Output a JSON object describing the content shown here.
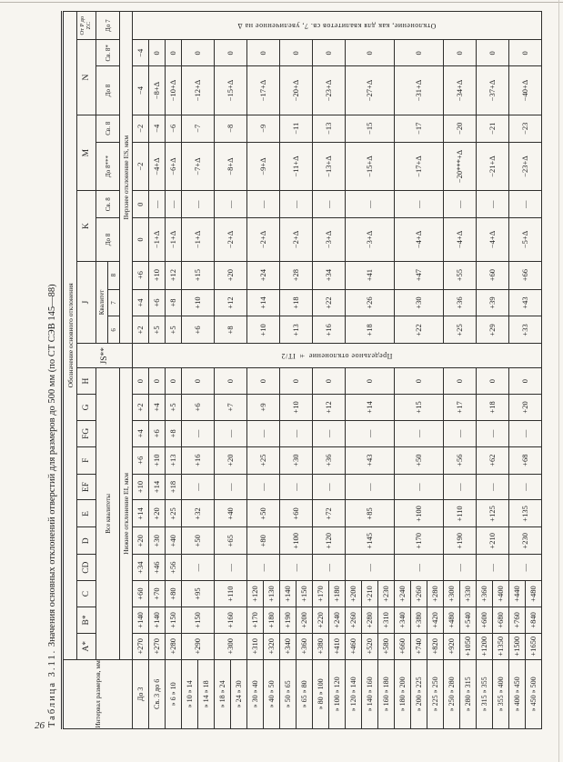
{
  "page": {
    "number": "26"
  },
  "table": {
    "title_label": "Таблица 3.11.",
    "title_text": "Значения основных отклонений отверстий для размеров до 500 мм (по СТ СЭВ 145—88)",
    "header": {
      "interval": "Интервал размеров, мм",
      "designation": "Обозначение основного отклонения",
      "letters": {
        "A": "A*",
        "B": "B*",
        "C": "C",
        "CD": "CD",
        "D": "D",
        "E": "E",
        "EF": "EF",
        "F": "F",
        "FG": "FG",
        "G": "G",
        "H": "H",
        "JS": "JS**",
        "J": "J",
        "K": "K",
        "M": "M",
        "N": "N",
        "PZC": "От P до ZC"
      },
      "all_grades": "Все квалитеты",
      "grade": "Квалитет",
      "grades": [
        "6",
        "7",
        "8"
      ],
      "k_sub": [
        "До 8",
        "Св. 8"
      ],
      "m_sub": [
        "До 8***",
        "Св. 8"
      ],
      "n_sub": [
        "До 8",
        "Св. 8*"
      ],
      "pzc_sub": "До 7",
      "lower": "Нижнее отклонение EI, мкм",
      "upper": "Верхнее отклонение ES, мкм"
    },
    "js_note": "Предельное отклонение ± IT/2",
    "pzc_note": "Отклонение, как для квалитетов св. 7, увеличенное на Δ",
    "intervals": [
      "До 3",
      "Св. 3 до 6",
      "» 6 » 10",
      "» 10 » 14",
      "» 14 » 18",
      "» 18 » 24",
      "» 24 » 30",
      "» 30 » 40",
      "» 40 » 50",
      "» 50 » 65",
      "» 65 » 80",
      "» 80 » 100",
      "» 100 » 120",
      "» 120 » 140",
      "» 140 » 160",
      "» 160 » 180",
      "» 180 » 200",
      "» 200 » 225",
      "» 225 » 250",
      "» 250 » 280",
      "» 280 » 315",
      "» 315 » 355",
      "» 355 » 400",
      "» 400 » 450",
      "» 450 » 500"
    ],
    "span_groups": [
      [
        0
      ],
      [
        1
      ],
      [
        2
      ],
      [
        3,
        4
      ],
      [
        5,
        6
      ],
      [
        7,
        8
      ],
      [
        9,
        10
      ],
      [
        11,
        12
      ],
      [
        13,
        14,
        15
      ],
      [
        16,
        17,
        18
      ],
      [
        19,
        20
      ],
      [
        21,
        22
      ],
      [
        23,
        24
      ]
    ],
    "span_abc": [
      [
        0
      ],
      [
        1
      ],
      [
        2
      ],
      [
        3,
        4
      ],
      [
        5,
        6
      ],
      [
        7
      ],
      [
        8
      ],
      [
        9
      ],
      [
        10
      ],
      [
        11
      ],
      [
        12
      ],
      [
        13
      ],
      [
        14
      ],
      [
        15
      ],
      [
        16
      ],
      [
        17
      ],
      [
        18
      ],
      [
        19
      ],
      [
        20
      ],
      [
        21
      ],
      [
        22
      ],
      [
        23
      ],
      [
        24
      ]
    ],
    "col_order": [
      {
        "key": "A",
        "span": "abc"
      },
      {
        "key": "B",
        "span": "abc"
      },
      {
        "key": "C",
        "span": "abc"
      },
      {
        "key": "CD",
        "span": "groups"
      },
      {
        "key": "D",
        "span": "groups"
      },
      {
        "key": "E",
        "span": "groups"
      },
      {
        "key": "EF",
        "span": "groups"
      },
      {
        "key": "F",
        "span": "groups"
      },
      {
        "key": "FG",
        "span": "groups"
      },
      {
        "key": "G",
        "span": "groups"
      },
      {
        "key": "H",
        "span": "groups"
      },
      {
        "key": "JS",
        "span": "full",
        "note": "js_note"
      },
      {
        "key": "J6",
        "span": "groups"
      },
      {
        "key": "J7",
        "span": "groups"
      },
      {
        "key": "J8",
        "span": "groups"
      },
      {
        "key": "K_do8",
        "span": "groups"
      },
      {
        "key": "K_sv8",
        "span": "groups"
      },
      {
        "key": "M_do8",
        "span": "groups"
      },
      {
        "key": "M_sv8",
        "span": "groups"
      },
      {
        "key": "N_do8",
        "span": "groups"
      },
      {
        "key": "N_sv8",
        "span": "groups"
      },
      {
        "key": "PZC",
        "span": "full",
        "note": "pzc_note"
      }
    ],
    "columns": {
      "A": [
        "+270",
        "+270",
        "+280",
        "+290",
        "+300",
        "+310",
        "+320",
        "+340",
        "+360",
        "+380",
        "+410",
        "+460",
        "+520",
        "+580",
        "+660",
        "+740",
        "+820",
        "+920",
        "+1050",
        "+1200",
        "+1350",
        "+1500",
        "+1650"
      ],
      "B": [
        "+140",
        "+140",
        "+150",
        "+150",
        "+160",
        "+170",
        "+180",
        "+190",
        "+200",
        "+220",
        "+240",
        "+260",
        "+280",
        "+310",
        "+340",
        "+380",
        "+420",
        "+480",
        "+540",
        "+600",
        "+680",
        "+760",
        "+840"
      ],
      "C": [
        "+60",
        "+70",
        "+80",
        "+95",
        "+110",
        "+120",
        "+130",
        "+140",
        "+150",
        "+170",
        "+180",
        "+200",
        "+210",
        "+230",
        "+240",
        "+260",
        "+280",
        "+300",
        "+330",
        "+360",
        "+400",
        "+440",
        "+480"
      ],
      "CD": [
        "+34",
        "+46",
        "+56",
        "—",
        "—",
        "—",
        "—",
        "—",
        "—",
        "—",
        "—",
        "—",
        "—"
      ],
      "D": [
        "+20",
        "+30",
        "+40",
        "+50",
        "+65",
        "+80",
        "+100",
        "+120",
        "+145",
        "+170",
        "+190",
        "+210",
        "+230"
      ],
      "E": [
        "+14",
        "+20",
        "+25",
        "+32",
        "+40",
        "+50",
        "+60",
        "+72",
        "+85",
        "+100",
        "+110",
        "+125",
        "+135"
      ],
      "EF": [
        "+10",
        "+14",
        "+18",
        "—",
        "—",
        "—",
        "—",
        "—",
        "—",
        "—",
        "—",
        "—",
        "—"
      ],
      "F": [
        "+6",
        "+10",
        "+13",
        "+16",
        "+20",
        "+25",
        "+30",
        "+36",
        "+43",
        "+50",
        "+56",
        "+62",
        "+68"
      ],
      "FG": [
        "+4",
        "+6",
        "+8",
        "—",
        "—",
        "—",
        "—",
        "—",
        "—",
        "—",
        "—",
        "—",
        "—"
      ],
      "G": [
        "+2",
        "+4",
        "+5",
        "+6",
        "+7",
        "+9",
        "+10",
        "+12",
        "+14",
        "+15",
        "+17",
        "+18",
        "+20"
      ],
      "H": [
        "0",
        "0",
        "0",
        "0",
        "0",
        "0",
        "0",
        "0",
        "0",
        "0",
        "0",
        "0",
        "0"
      ],
      "J6": [
        "+2",
        "+5",
        "+5",
        "+6",
        "+8",
        "+10",
        "+13",
        "+16",
        "+18",
        "+22",
        "+25",
        "+29",
        "+33"
      ],
      "J7": [
        "+4",
        "+6",
        "+8",
        "+10",
        "+12",
        "+14",
        "+18",
        "+22",
        "+26",
        "+30",
        "+36",
        "+39",
        "+43"
      ],
      "J8": [
        "+6",
        "+10",
        "+12",
        "+15",
        "+20",
        "+24",
        "+28",
        "+34",
        "+41",
        "+47",
        "+55",
        "+60",
        "+66"
      ],
      "K_do8": [
        "0",
        "−1+Δ",
        "−1+Δ",
        "−1+Δ",
        "−2+Δ",
        "−2+Δ",
        "−2+Δ",
        "−3+Δ",
        "−3+Δ",
        "−4+Δ",
        "−4+Δ",
        "−4+Δ",
        "−5+Δ"
      ],
      "K_sv8": [
        "0",
        "—",
        "—",
        "—",
        "—",
        "—",
        "—",
        "—",
        "—",
        "—",
        "—",
        "—",
        "—"
      ],
      "M_do8": [
        "−2",
        "−4+Δ",
        "−6+Δ",
        "−7+Δ",
        "−8+Δ",
        "−9+Δ",
        "−11+Δ",
        "−13+Δ",
        "−15+Δ",
        "−17+Δ",
        "−20***+Δ",
        "−21+Δ",
        "−23+Δ"
      ],
      "M_sv8": [
        "−2",
        "−4",
        "−6",
        "−7",
        "−8",
        "−9",
        "−11",
        "−13",
        "−15",
        "−17",
        "−20",
        "−21",
        "−23"
      ],
      "N_do8": [
        "−4",
        "−8+Δ",
        "−10+Δ",
        "−12+Δ",
        "−15+Δ",
        "−17+Δ",
        "−20+Δ",
        "−23+Δ",
        "−27+Δ",
        "−31+Δ",
        "−34+Δ",
        "−37+Δ",
        "−40+Δ"
      ],
      "N_sv8": [
        "−4",
        "0",
        "0",
        "0",
        "0",
        "0",
        "0",
        "0",
        "0",
        "0",
        "0",
        "0",
        "0"
      ]
    }
  }
}
